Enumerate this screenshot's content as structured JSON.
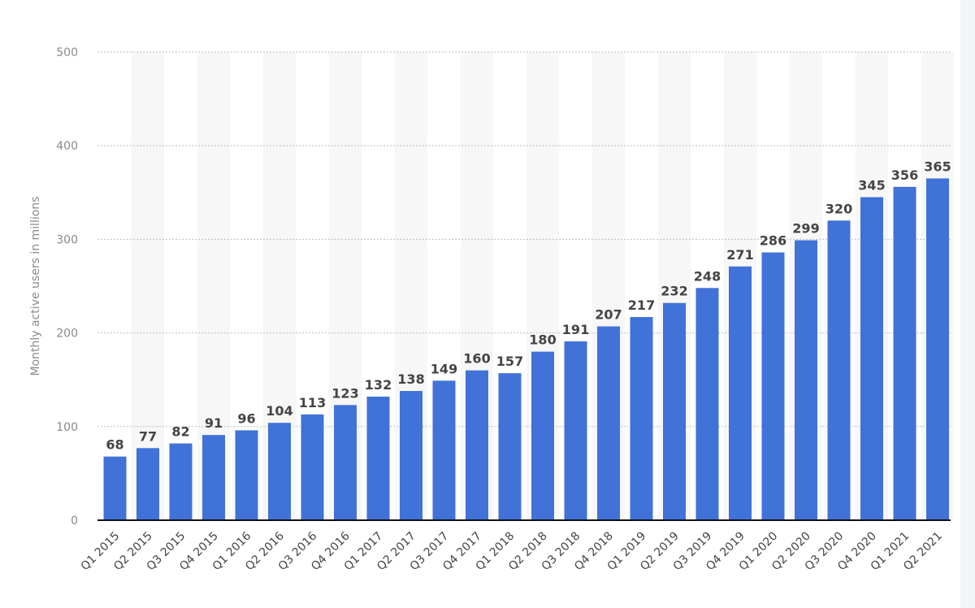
{
  "chart_data": {
    "type": "bar",
    "title": "",
    "xlabel": "",
    "ylabel": "Monthly active users in millions",
    "ylim": [
      0,
      500
    ],
    "yticks": [
      0,
      100,
      200,
      300,
      400,
      500
    ],
    "grid": true,
    "legend": "none",
    "categories": [
      "Q1 2015",
      "Q2 2015",
      "Q3 2015",
      "Q4 2015",
      "Q1 2016",
      "Q2 2016",
      "Q3 2016",
      "Q4 2016",
      "Q1 2017",
      "Q2 2017",
      "Q3 2017",
      "Q4 2017",
      "Q1 2018",
      "Q2 2018",
      "Q3 2018",
      "Q4 2018",
      "Q1 2019",
      "Q2 2019",
      "Q3 2019",
      "Q4 2019",
      "Q1 2020",
      "Q2 2020",
      "Q3 2020",
      "Q4 2020",
      "Q1 2021",
      "Q2 2021"
    ],
    "values": [
      68,
      77,
      82,
      91,
      96,
      104,
      113,
      123,
      132,
      138,
      149,
      160,
      157,
      180,
      191,
      207,
      217,
      232,
      248,
      271,
      286,
      299,
      320,
      345,
      356,
      365
    ],
    "colors": {
      "bar": "#4072d8",
      "alt_band": "#f7f7f7",
      "grid": "#bdbdbd",
      "axis_line": "#111111",
      "tick_text": "#8a8a8a",
      "label_text": "#444444"
    }
  }
}
